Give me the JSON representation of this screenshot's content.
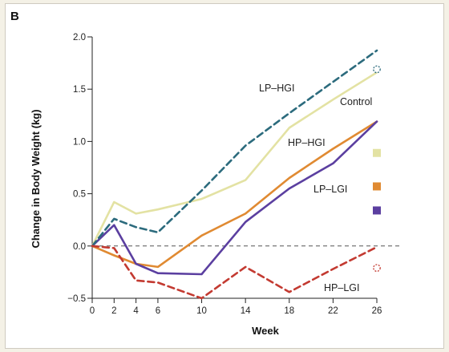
{
  "panel_label": "B",
  "colors": {
    "lp_hgi": "#2c6b7d",
    "control": "#e3e2a3",
    "hp_hgi": "#e08a32",
    "lp_lgi": "#5b3fa0",
    "hp_lgi": "#c33a31",
    "zero_line": "#555555",
    "axis": "#222222"
  },
  "chart_data": {
    "type": "line",
    "xlabel": "Week",
    "ylabel": "Change in Body Weight (kg)",
    "xlim": [
      0,
      26
    ],
    "ylim": [
      -0.5,
      2.0
    ],
    "x_ticks": [
      0,
      2,
      4,
      6,
      10,
      14,
      18,
      22,
      26
    ],
    "x_tick_labels": [
      "0",
      "2",
      "4",
      "6",
      "10",
      "14",
      "18",
      "22",
      "26"
    ],
    "y_ticks": [
      -0.5,
      0.0,
      0.5,
      1.0,
      1.5,
      2.0
    ],
    "y_tick_labels": [
      "−0.5",
      "0.0",
      "0.5",
      "1.0",
      "1.5",
      "2.0"
    ],
    "x": [
      0,
      2,
      4,
      6,
      10,
      14,
      18,
      22,
      26
    ],
    "series": [
      {
        "key": "control",
        "name": "Control",
        "style": "solid",
        "values": [
          0.0,
          0.42,
          0.31,
          0.35,
          0.45,
          0.63,
          1.13,
          1.4,
          1.66
        ]
      },
      {
        "key": "hp_hgi",
        "name": "HP–HGI",
        "style": "solid",
        "values": [
          0.0,
          -0.09,
          -0.17,
          -0.2,
          0.1,
          0.31,
          0.65,
          0.93,
          1.19
        ]
      },
      {
        "key": "lp_lgi",
        "name": "LP–LGI",
        "style": "solid",
        "values": [
          0.0,
          0.2,
          -0.17,
          -0.26,
          -0.27,
          0.23,
          0.55,
          0.79,
          1.19
        ]
      },
      {
        "key": "lp_hgi",
        "name": "LP–HGI",
        "style": "dashed",
        "values": [
          0.0,
          0.26,
          0.18,
          0.13,
          0.53,
          0.96,
          1.27,
          1.57,
          1.87
        ]
      },
      {
        "key": "hp_lgi",
        "name": "HP–LGI",
        "style": "dashed",
        "values": [
          0.0,
          -0.02,
          -0.33,
          -0.35,
          -0.5,
          -0.2,
          -0.44,
          -0.22,
          -0.01
        ]
      }
    ],
    "end_markers": [
      {
        "key": "lp_hgi",
        "value": 1.69,
        "style": "dashed-circle"
      },
      {
        "key": "hp_lgi",
        "value": -0.21,
        "style": "dashed-circle"
      }
    ],
    "legend": [
      {
        "key": "control",
        "value": 0.89
      },
      {
        "key": "hp_hgi",
        "value": 0.57
      },
      {
        "key": "lp_lgi",
        "value": 0.34
      }
    ],
    "reference_line": {
      "y": 0.0,
      "style": "dashed"
    }
  }
}
